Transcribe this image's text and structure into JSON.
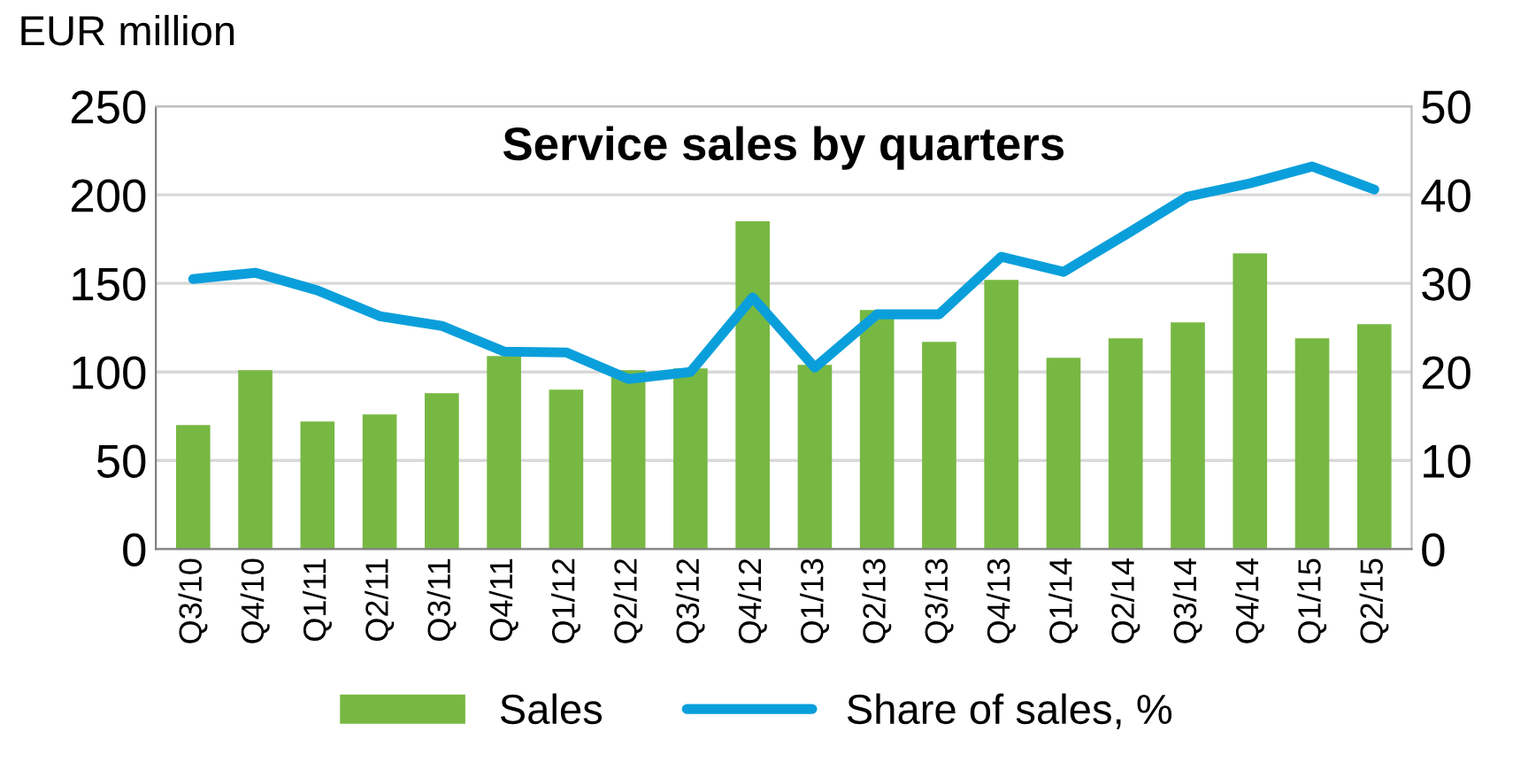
{
  "chart_data": {
    "type": "bar",
    "title": "Service sales by quarters",
    "ylabel": "EUR million",
    "categories": [
      "Q3/10",
      "Q4/10",
      "Q1/11",
      "Q2/11",
      "Q3/11",
      "Q4/11",
      "Q1/12",
      "Q2/12",
      "Q3/12",
      "Q4/12",
      "Q1/13",
      "Q2/13",
      "Q3/13",
      "Q4/13",
      "Q1/14",
      "Q2/14",
      "Q3/14",
      "Q4/14",
      "Q1/15",
      "Q2/15"
    ],
    "series": [
      {
        "name": "Sales",
        "color": "#77b843",
        "values": [
          70,
          101,
          72,
          76,
          88,
          109,
          90,
          101,
          102,
          185,
          104,
          135,
          117,
          152,
          108,
          119,
          128,
          167,
          119,
          127
        ]
      },
      {
        "name": "Share of sales, %",
        "type": "line",
        "axis": "y2",
        "color": "#0a9fdb",
        "values": [
          30.5,
          31.2,
          29.2,
          26.3,
          25.2,
          22.3,
          22.2,
          19.2,
          20.0,
          28.4,
          20.5,
          26.5,
          26.5,
          33.0,
          31.3,
          35.5,
          39.8,
          41.3,
          43.2,
          40.6
        ]
      }
    ],
    "ylim": [
      0,
      250
    ],
    "yticks": [
      0,
      50,
      100,
      150,
      200,
      250
    ],
    "y2lim": [
      0,
      50
    ],
    "y2ticks": [
      0,
      10,
      20,
      30,
      40,
      50
    ],
    "grid": "y",
    "legend": "bottom",
    "marker": "none",
    "line_style": "solid"
  }
}
